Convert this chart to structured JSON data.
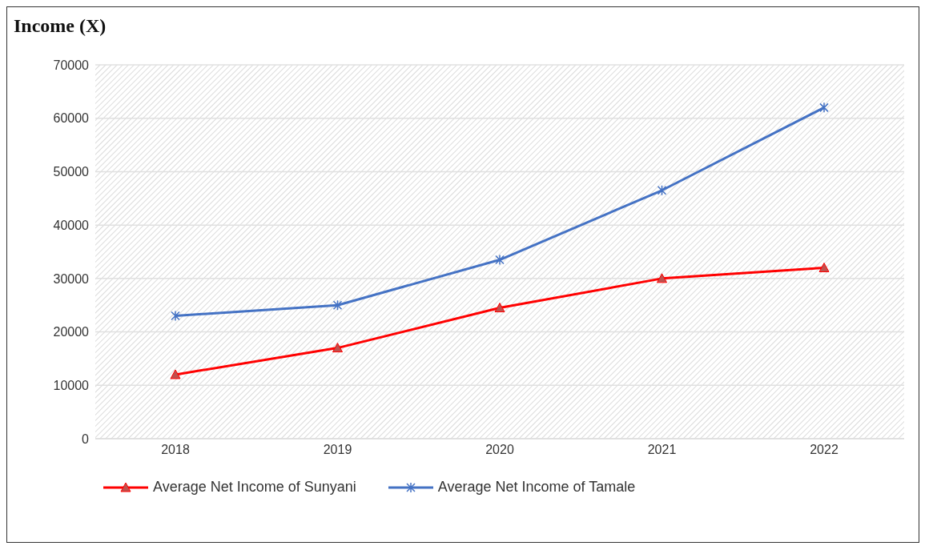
{
  "chart_data": {
    "type": "line",
    "title": "Income (X)",
    "categories": [
      "2018",
      "2019",
      "2020",
      "2021",
      "2022"
    ],
    "series": [
      {
        "name": "Average Net Income of Sunyani",
        "color": "#ff0000",
        "marker": "triangle",
        "values": [
          12000,
          17000,
          24500,
          30000,
          32000
        ]
      },
      {
        "name": "Average Net Income of Tamale",
        "color": "#4472c4",
        "marker": "cross",
        "values": [
          23000,
          25000,
          33500,
          46500,
          62000
        ]
      }
    ],
    "ylim": [
      0,
      70000
    ],
    "yticks": [
      0,
      10000,
      20000,
      30000,
      40000,
      50000,
      60000,
      70000
    ],
    "grid": "y",
    "legend": "bottom"
  }
}
